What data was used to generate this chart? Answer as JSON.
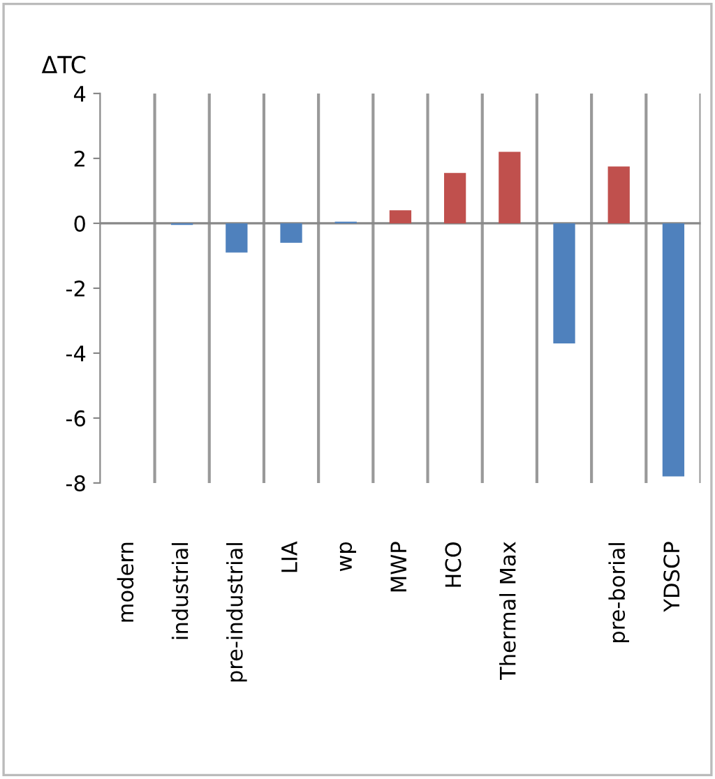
{
  "chart_data": {
    "type": "bar",
    "ylabel": "ΔTC",
    "categories": [
      "modern",
      "industrial",
      "pre-industrial",
      "LIA",
      "wp",
      "MWP",
      "HCO",
      "Thermal Max",
      null,
      "pre-borial",
      "YDSCP"
    ],
    "values": [
      0,
      -0.05,
      -0.9,
      -0.6,
      0.05,
      0.4,
      1.55,
      2.2,
      -3.7,
      1.75,
      -7.8
    ],
    "colors": [
      "#4f81bd",
      "#4f81bd",
      "#4f81bd",
      "#4f81bd",
      "#4f81bd",
      "#c0504d",
      "#c0504d",
      "#c0504d",
      "#4f81bd",
      "#c0504d",
      "#4f81bd"
    ],
    "ylim": [
      -8,
      4
    ],
    "yticks": [
      -8,
      -6,
      -4,
      -2,
      0,
      2,
      4
    ],
    "grid": "x"
  }
}
